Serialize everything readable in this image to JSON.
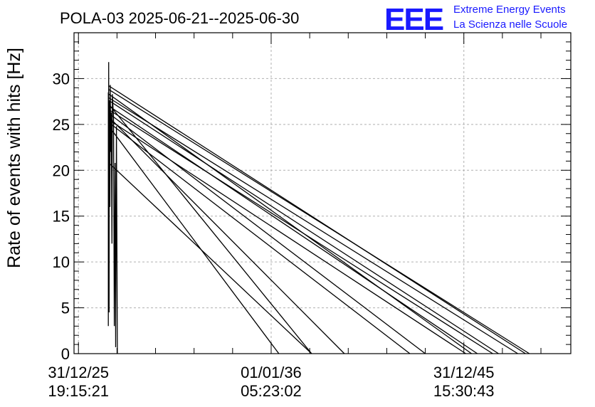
{
  "chart_data": {
    "type": "line",
    "title": "POLA-03 2025-06-21--2025-06-30",
    "ylabel": "Rate of events with hits [Hz]",
    "xlabel": "",
    "ylim": [
      0,
      35
    ],
    "y_ticks": [
      0,
      5,
      10,
      15,
      20,
      25,
      30
    ],
    "x_ticks": [
      {
        "value": 0,
        "line1": "31/12/25",
        "line2": "19:15:21"
      },
      {
        "value": 100,
        "line1": "01/01/36",
        "line2": "05:23:02"
      },
      {
        "value": 200,
        "line1": "31/12/45",
        "line2": "15:30:43"
      }
    ],
    "xlim": [
      -2.3,
      255.5
    ],
    "grid": true,
    "series_color": "#000000",
    "trace": [
      [
        15.5,
        3
      ],
      [
        15.5,
        28.5
      ],
      [
        15.6,
        7
      ],
      [
        15.7,
        31.8
      ],
      [
        15.9,
        4.5
      ],
      [
        16.0,
        27.5
      ],
      [
        16.3,
        16
      ],
      [
        16.5,
        29.3
      ],
      [
        16.8,
        22
      ],
      [
        17.0,
        26.3
      ],
      [
        17.4,
        12
      ],
      [
        17.6,
        28.3
      ],
      [
        18.2,
        25.8
      ],
      [
        18.6,
        3
      ],
      [
        19.0,
        20.8
      ],
      [
        19.3,
        0.7
      ],
      [
        19.7,
        24.8
      ],
      [
        20.2,
        0
      ]
    ],
    "segments": [
      {
        "x0": 15.8,
        "y0": 29.2,
        "x1": 232,
        "y1": 0
      },
      {
        "x0": 15.8,
        "y0": 28.8,
        "x1": 234,
        "y1": 0
      },
      {
        "x0": 15.8,
        "y0": 28.3,
        "x1": 204,
        "y1": 0
      },
      {
        "x0": 15.8,
        "y0": 27.9,
        "x1": 228,
        "y1": 0
      },
      {
        "x0": 15.8,
        "y0": 27.6,
        "x1": 218,
        "y1": 0
      },
      {
        "x0": 15.8,
        "y0": 27.0,
        "x1": 207,
        "y1": 0
      },
      {
        "x0": 15.8,
        "y0": 26.6,
        "x1": 215,
        "y1": 0
      },
      {
        "x0": 15.8,
        "y0": 26.2,
        "x1": 180,
        "y1": 0
      },
      {
        "x0": 15.8,
        "y0": 25.8,
        "x1": 138,
        "y1": 0
      },
      {
        "x0": 15.8,
        "y0": 25.5,
        "x1": 201,
        "y1": 0
      },
      {
        "x0": 15.8,
        "y0": 25.2,
        "x1": 172,
        "y1": 0
      },
      {
        "x0": 15.8,
        "y0": 24.8,
        "x1": 104,
        "y1": 0
      },
      {
        "x0": 15.8,
        "y0": 20.8,
        "x1": 121,
        "y1": 0
      },
      {
        "x0": 15.8,
        "y0": 27.2,
        "x1": 121,
        "y1": 0
      }
    ]
  },
  "logo": {
    "mark": "EEE",
    "line1": "Extreme Energy Events",
    "line2": "La Scienza nelle Scuole",
    "color": "#1a1aff"
  }
}
